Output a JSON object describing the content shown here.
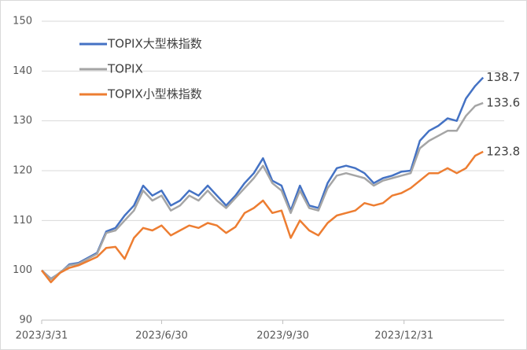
{
  "chart_data": {
    "type": "line",
    "x": [
      "2023/3/31",
      "2023/4/7",
      "2023/4/14",
      "2023/4/21",
      "2023/4/28",
      "2023/5/12",
      "2023/5/19",
      "2023/5/26",
      "2023/6/2",
      "2023/6/9",
      "2023/6/16",
      "2023/6/23",
      "2023/6/30",
      "2023/7/7",
      "2023/7/14",
      "2023/7/21",
      "2023/7/28",
      "2023/8/4",
      "2023/8/11",
      "2023/8/18",
      "2023/8/25",
      "2023/9/1",
      "2023/9/8",
      "2023/9/15",
      "2023/9/22",
      "2023/9/29",
      "2023/10/6",
      "2023/10/13",
      "2023/10/20",
      "2023/10/27",
      "2023/11/3",
      "2023/11/10",
      "2023/11/17",
      "2023/11/24",
      "2023/12/1",
      "2023/12/8",
      "2023/12/15",
      "2023/12/22",
      "2023/12/29",
      "2024/1/5",
      "2024/1/12",
      "2024/1/19",
      "2024/1/26",
      "2024/2/2",
      "2024/2/9",
      "2024/2/16",
      "2024/2/23",
      "2024/2/29"
    ],
    "series": [
      {
        "name": "TOPIX大型株指数",
        "color": "#4472c4",
        "values": [
          100,
          98.3,
          99.5,
          101.2,
          101.5,
          103.5,
          107.8,
          108.5,
          111,
          113,
          117,
          115,
          116,
          113,
          114,
          116,
          115,
          117,
          115,
          113,
          115,
          117.5,
          119.5,
          122.5,
          118,
          117,
          112,
          117,
          113,
          112.5,
          117.5,
          120.5,
          121,
          120.5,
          119.5,
          117.5,
          118.5,
          119,
          119.8,
          120,
          126,
          128,
          129,
          130.5,
          130,
          134.5,
          137,
          138.7
        ]
      },
      {
        "name": "TOPIX",
        "color": "#a5a5a5",
        "values": [
          100,
          98.2,
          99.6,
          101,
          101.3,
          103.3,
          107.5,
          108,
          110,
          112,
          116,
          114,
          115,
          112,
          113,
          115,
          114,
          116,
          114,
          112.5,
          114.5,
          116.5,
          118.5,
          121,
          117.5,
          116,
          111.5,
          116,
          112.5,
          112,
          116.5,
          119,
          119.5,
          119,
          118.5,
          117,
          118,
          118.5,
          119,
          119.5,
          124.5,
          126,
          127,
          128,
          128,
          131,
          133,
          133.6
        ]
      },
      {
        "name": "TOPIX小型株指数",
        "color": "#ed7d31",
        "values": [
          100,
          97.6,
          99.5,
          100.5,
          101,
          102.7,
          104.5,
          104.7,
          102.3,
          106.5,
          108.5,
          108,
          109,
          107,
          108,
          109,
          108.5,
          109.5,
          109,
          107.5,
          108.7,
          111.5,
          112.5,
          114,
          111.5,
          112,
          106.5,
          110,
          108,
          107,
          109.5,
          111,
          111.5,
          112,
          113.5,
          113,
          113.5,
          115,
          115.5,
          116.5,
          118,
          119.5,
          119.5,
          120.5,
          119.5,
          120.5,
          123,
          123.8
        ]
      }
    ],
    "xlim": [
      "2023/3/31",
      "2024/3/16"
    ],
    "xticks": [
      "2023/3/31",
      "2023/6/30",
      "2023/9/30",
      "2023/12/31"
    ],
    "ylim": [
      90,
      150
    ],
    "yticks": [
      90,
      100,
      110,
      120,
      130,
      140,
      150
    ],
    "grid": true,
    "legend": "top-left"
  }
}
